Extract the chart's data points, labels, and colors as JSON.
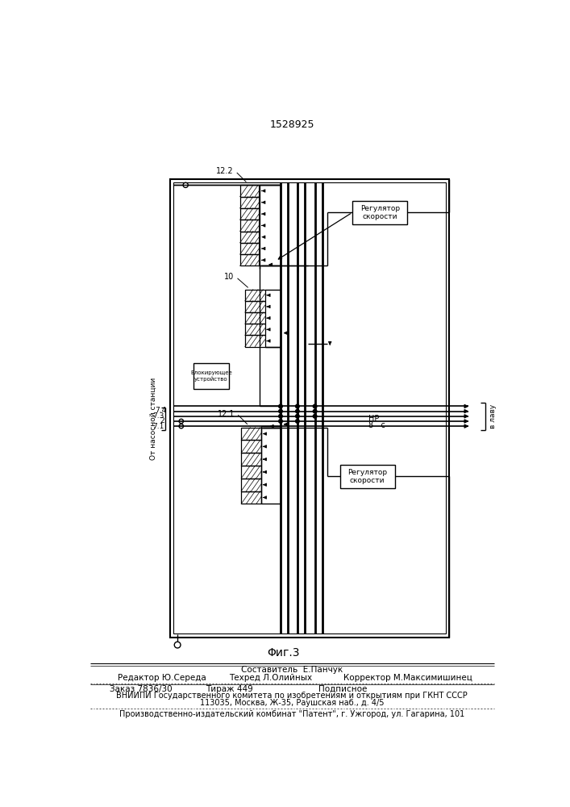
{
  "title": "1528925",
  "fig_label": "Φиг.3",
  "bg_color": "#ffffff",
  "line_color": "#000000",
  "label_from_pump": "От насосной станции",
  "label_to_lava": "в лаву",
  "label_HP": "НР",
  "label_8c": "8   с",
  "label_10": "10",
  "label_122": "12.2",
  "label_121": "12.1",
  "label_74": "7.4",
  "label_73": "7.3",
  "label_72": "2",
  "label_71": "7.1",
  "label_regulator_speed_top": "Регулятор\nскорости",
  "label_regulator_speed_bot": "Регулятор\nскорости",
  "label_blocking": "Блокирующее\nустройство",
  "footer_composer": "Составитель  Е.Панчук",
  "footer_editor": "Редактор Ю.Середа",
  "footer_techred": "Техред Л.Олийных",
  "footer_corrector": "Корректор М.Максимишинец",
  "footer_order": "Заказ 7836/30",
  "footer_print": "Тираж 449",
  "footer_sub": "Подписное",
  "footer_vniipii": "ВНИИПИ Государственного комитета по изобретениям и открытиям при ГКНТ СССР",
  "footer_address": "113035, Москва, Ж-35, Раушская наб., д. 4/5",
  "footer_patent": "Производственно-издательский комбинат \"Патент\", г. Ужгород, ул. Гагарина, 101"
}
